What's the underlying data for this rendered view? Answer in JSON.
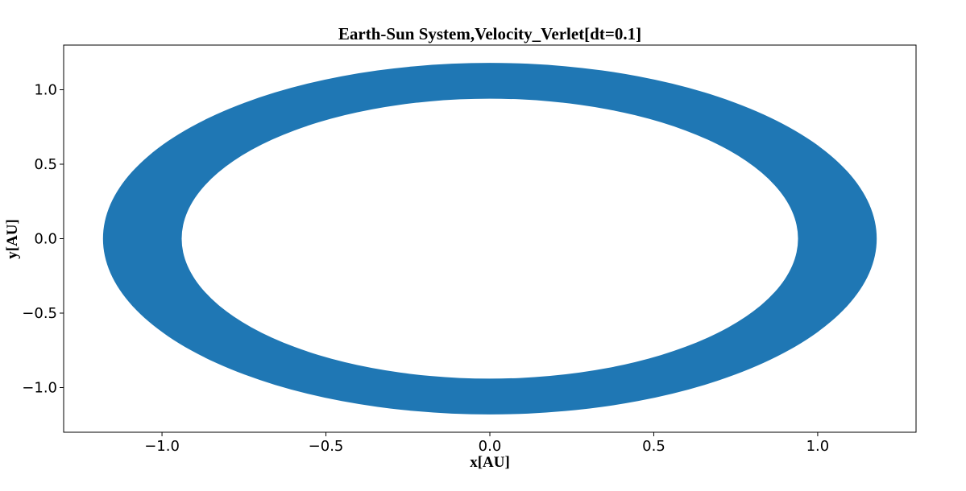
{
  "chart_data": {
    "type": "scatter",
    "title": "Earth-Sun System,Velocity_Verlet[dt=0.1]",
    "xlabel": "x[AU]",
    "ylabel": "y[AU]",
    "xlim": [
      -1.3,
      1.3
    ],
    "ylim": [
      -1.3,
      1.3
    ],
    "x_ticks": [
      -1.0,
      -0.5,
      0.0,
      0.5,
      1.0
    ],
    "x_tick_labels": [
      "−1.0",
      "−0.5",
      "0.0",
      "0.5",
      "1.0"
    ],
    "y_ticks": [
      -1.0,
      -0.5,
      0.0,
      0.5,
      1.0
    ],
    "y_tick_labels": [
      "−1.0",
      "−0.5",
      "0.0",
      "0.5",
      "1.0"
    ],
    "grid": false,
    "series": [
      {
        "color": "#1f77b4",
        "shape": "ring",
        "inner_radius": 0.94,
        "outer_radius": 1.18,
        "center": [
          0.0,
          0.0
        ]
      }
    ]
  }
}
